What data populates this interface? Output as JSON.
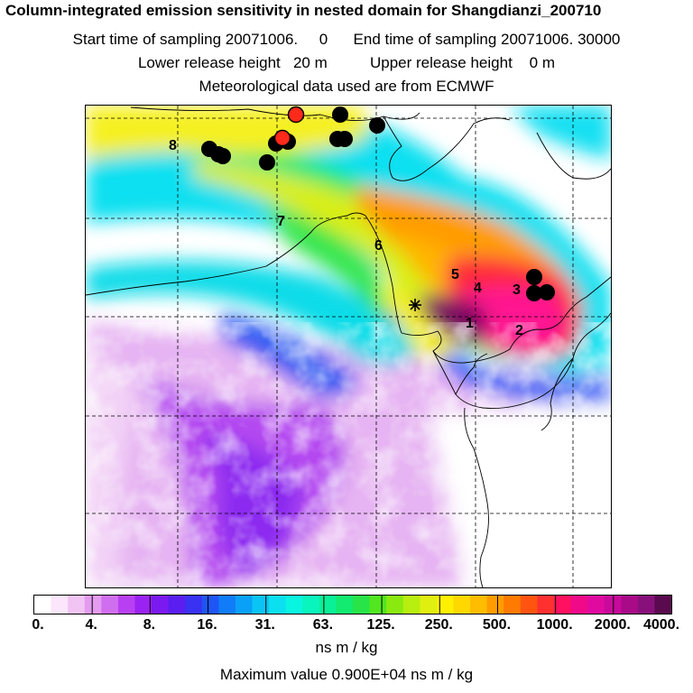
{
  "title": "Column-integrated emission sensitivity in nested domain for Shangdianzi_200710",
  "sampling_line": "Start time of sampling 20071006.     0      End time of sampling 20071006. 30000",
  "release_line": "Lower release height   20 m          Upper release height    0 m",
  "met_line": "Meteorological data used are from ECMWF",
  "colorbar": {
    "labels": [
      "0.",
      "4.",
      "8.",
      "16.",
      "31.",
      "63.",
      "125.",
      "250.",
      "500.",
      "1000.",
      "2000.",
      "4000."
    ],
    "colors": [
      "#ffffff",
      "#fbe6fb",
      "#f2c4f4",
      "#e49bf0",
      "#d06ef0",
      "#b940f2",
      "#9a22f2",
      "#7a19f0",
      "#5a1ef0",
      "#3a32f2",
      "#1f55f5",
      "#107cf7",
      "#0aa0f7",
      "#0ac4f5",
      "#0ae0f0",
      "#0af5e0",
      "#0af5bd",
      "#0af098",
      "#12ea70",
      "#28e448",
      "#52e620",
      "#8aea10",
      "#b8ee10",
      "#dff010",
      "#fff000",
      "#ffd800",
      "#ffbc00",
      "#ff9c00",
      "#ff7a00",
      "#ff5410",
      "#ff3030",
      "#ff1060",
      "#f00a8a",
      "#e00aa0",
      "#c80a9a",
      "#a80a88",
      "#88107a",
      "#5a0a4e"
    ],
    "units": "ns m / kg",
    "max_value": "Maximum value  0.900E+04 ns m / kg"
  },
  "map": {
    "receptor_marker": "*",
    "trajectory_labels": [
      "1",
      "2",
      "3",
      "4",
      "5",
      "6",
      "7",
      "8"
    ],
    "colors": {
      "low": "#f6d8f6",
      "violet": "#b44af0",
      "blue": "#3a6cf5",
      "cyan": "#10e0f0",
      "green": "#20e860",
      "yellow": "#f5f020",
      "orange": "#ff9c00",
      "red": "#ff2a3a",
      "magenta": "#ff1490",
      "darkmagenta": "#7a1060",
      "dot_black": "#000000",
      "dot_red": "#ff2a1a"
    }
  }
}
